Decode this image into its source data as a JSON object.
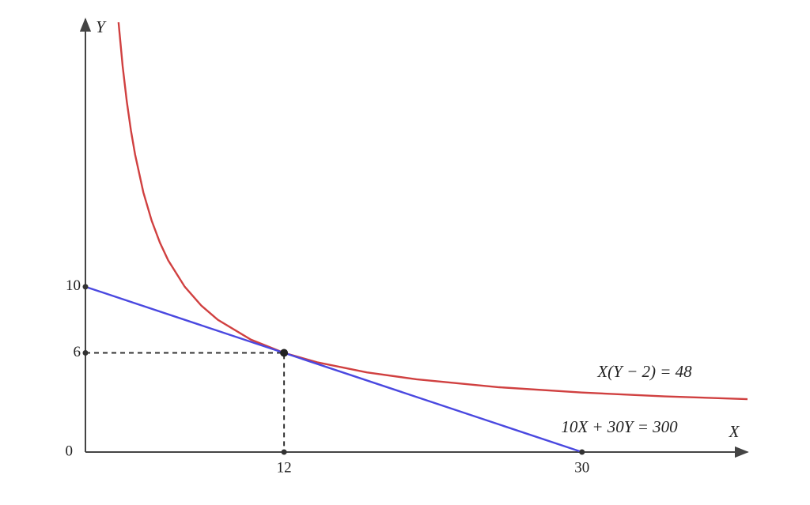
{
  "chart_data": {
    "type": "line",
    "x_label": "X",
    "y_label": "Y",
    "xlim": [
      0,
      40
    ],
    "ylim": [
      0,
      26.2
    ],
    "xticks": [
      12,
      30
    ],
    "yticks": [
      0,
      6,
      10
    ],
    "series": [
      {
        "name": "X(Y − 2) = 48",
        "color": "#d04040",
        "x": [
          2,
          2.25,
          2.5,
          2.75,
          3,
          3.5,
          4,
          4.5,
          5,
          6,
          7,
          8,
          10,
          12,
          14,
          17,
          20,
          25,
          30,
          35,
          40
        ],
        "values": [
          26,
          23.33,
          21.2,
          19.45,
          18,
          15.71,
          14,
          12.67,
          11.6,
          10,
          8.86,
          8,
          6.8,
          6,
          5.43,
          4.82,
          4.4,
          3.92,
          3.6,
          3.37,
          3.2
        ]
      },
      {
        "name": "10X + 30Y = 300",
        "color": "#4a48e0",
        "x": [
          0,
          30
        ],
        "values": [
          10,
          0
        ]
      }
    ],
    "points": [
      {
        "x": 12,
        "y": 6
      }
    ]
  }
}
